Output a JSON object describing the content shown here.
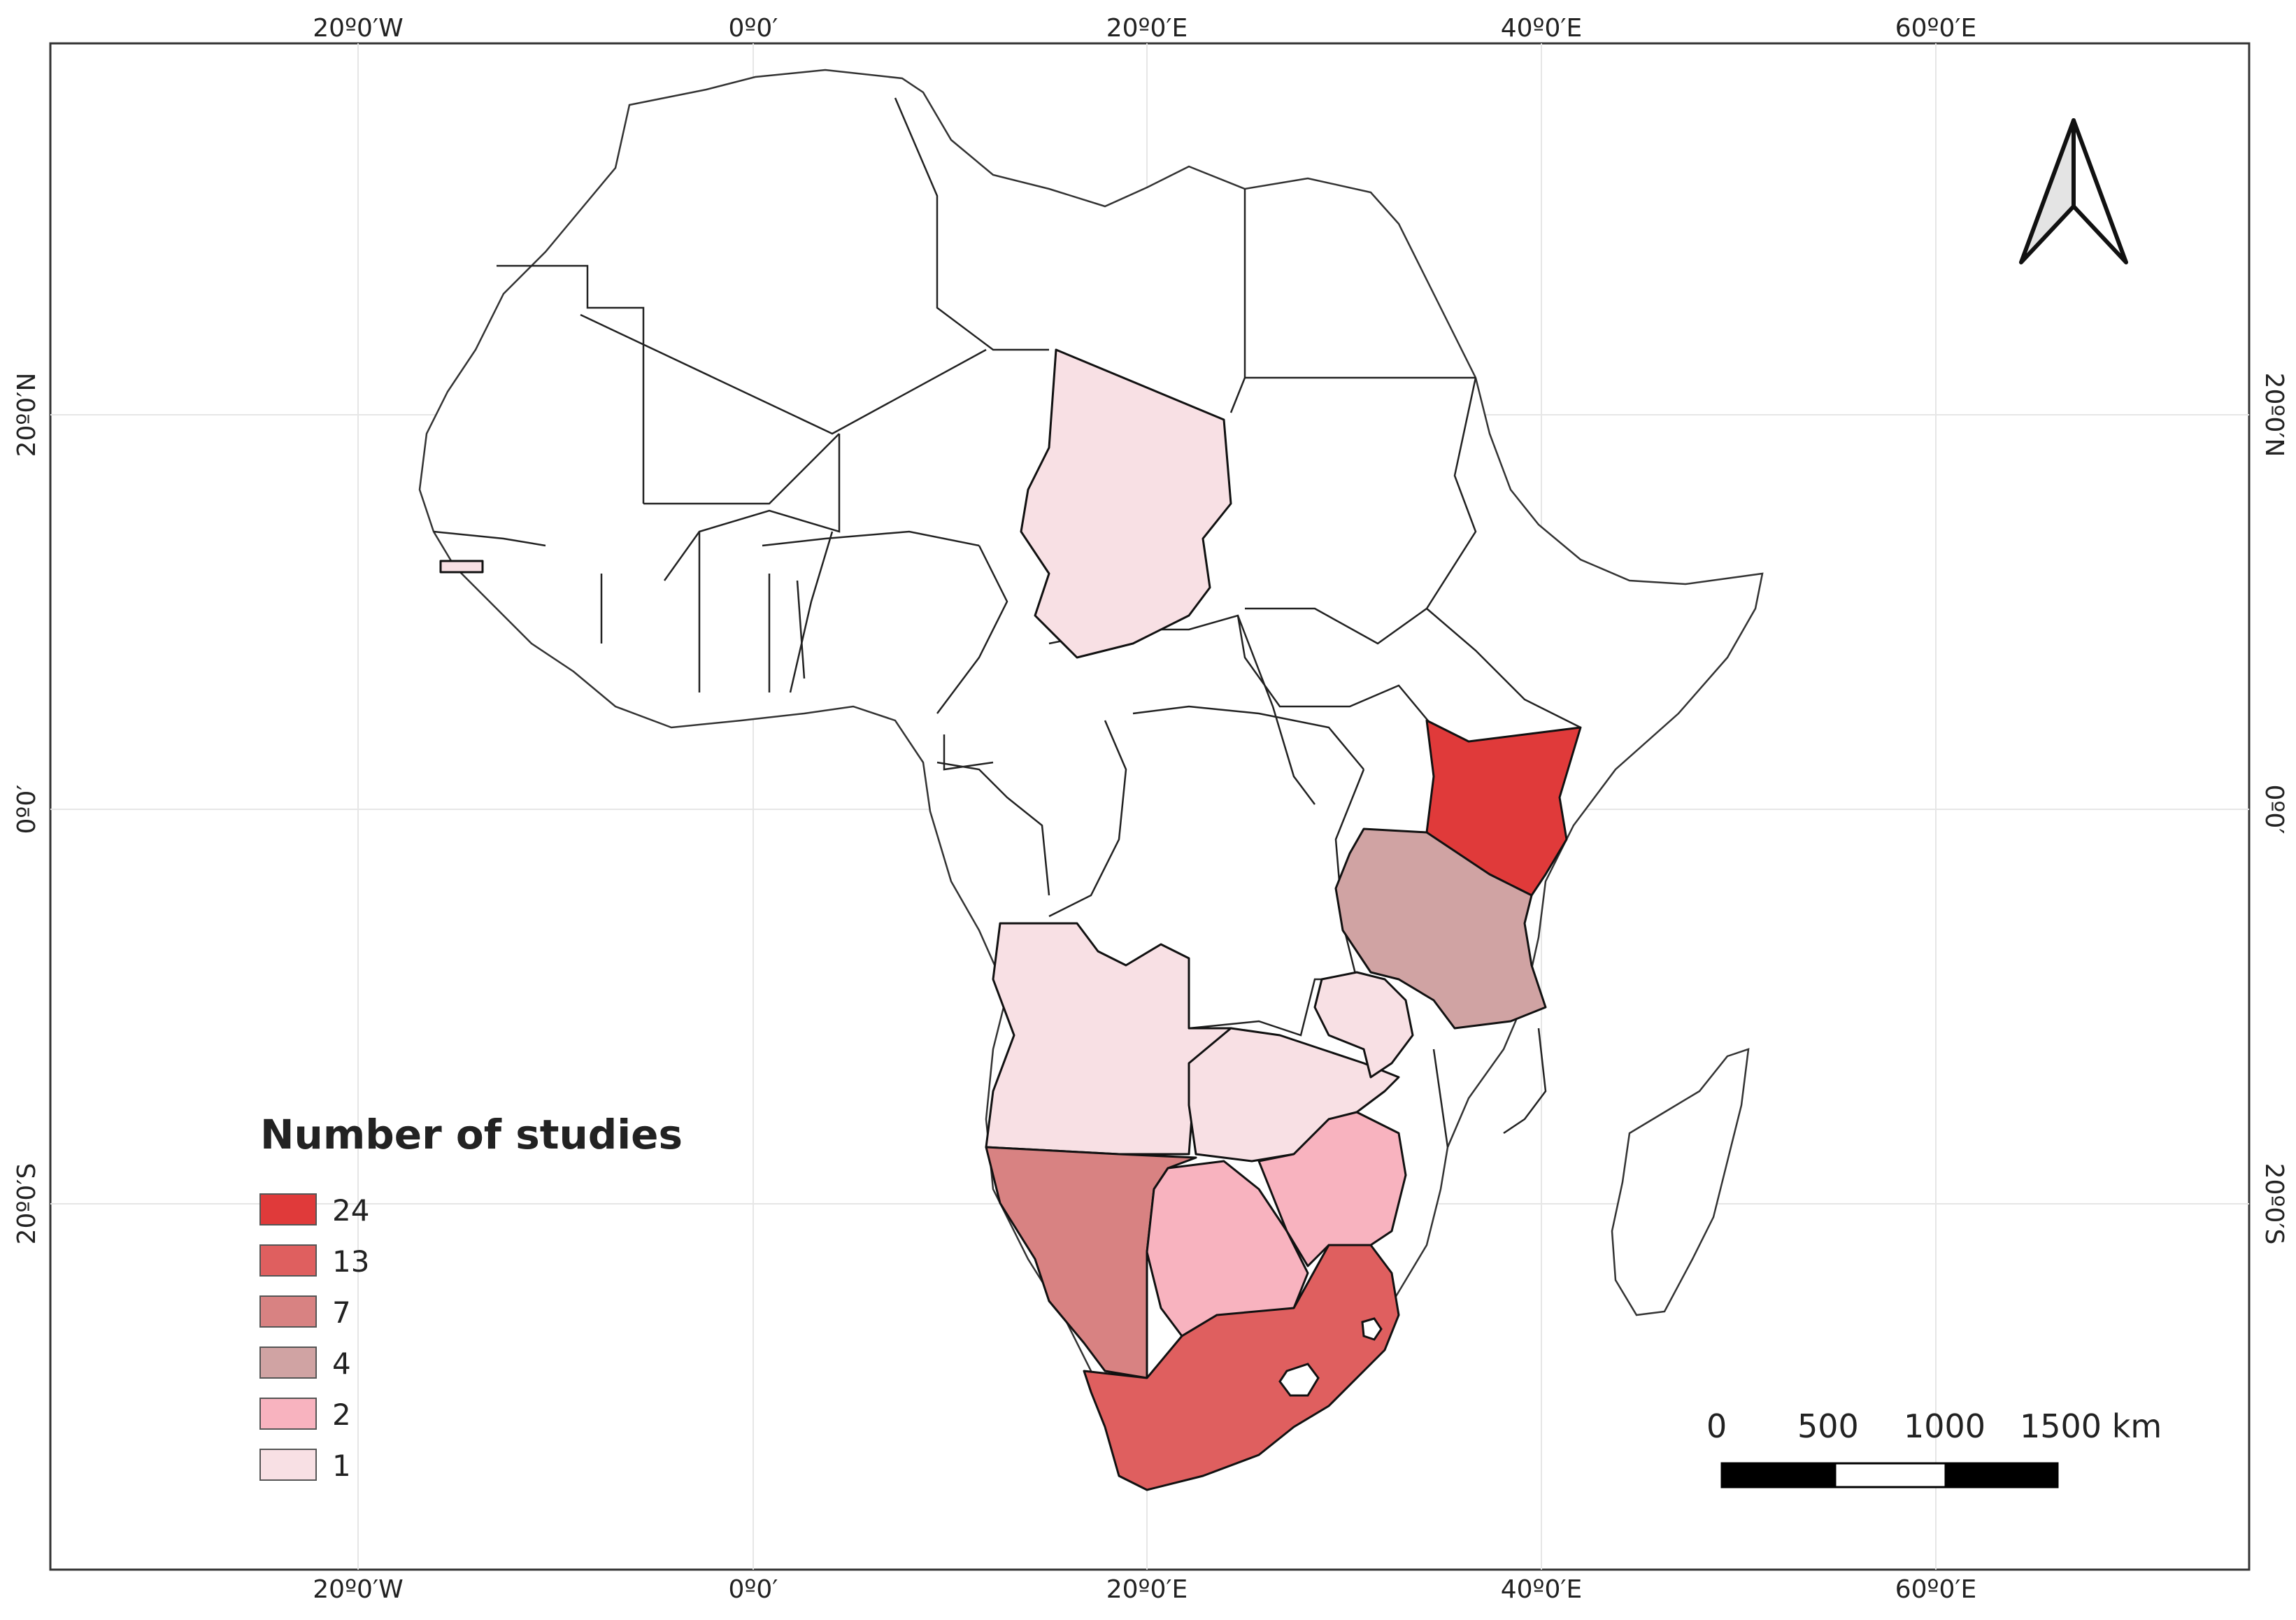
{
  "map": {
    "top_ticks": [
      "20º0′W",
      "0º0′",
      "20º0′E",
      "40º0′E",
      "60º0′E"
    ],
    "bottom_ticks": [
      "20º0′W",
      "0º0′",
      "20º0′E",
      "40º0′E",
      "60º0′E"
    ],
    "left_ticks": [
      "20º0′N",
      "0º0′",
      "20º0′S"
    ],
    "right_ticks": [
      "20º0′N",
      "0º0′",
      "20º0′S"
    ]
  },
  "legend": {
    "title": "Number of studies",
    "items": [
      {
        "label": "24",
        "color": "#e03a3a"
      },
      {
        "label": "13",
        "color": "#df5f5f"
      },
      {
        "label": "7",
        "color": "#d88282"
      },
      {
        "label": "4",
        "color": "#d0a3a3"
      },
      {
        "label": "2",
        "color": "#f8b3bf"
      },
      {
        "label": "1",
        "color": "#f8e0e4"
      }
    ]
  },
  "scale_bar": {
    "labels": [
      "0",
      "500",
      "1000",
      "1500 km"
    ]
  },
  "colors": {
    "kenya": "#e03a3a",
    "south_africa": "#df5f5f",
    "namibia": "#d88282",
    "tanzania": "#d0a3a3",
    "botswana": "#f8b3bf",
    "zimbabwe": "#f8b3bf",
    "chad": "#f8e0e4",
    "angola": "#f8e0e4",
    "zambia": "#f8e0e4",
    "malawi": "#f8e0e4",
    "gambia": "#f8e0e4"
  }
}
